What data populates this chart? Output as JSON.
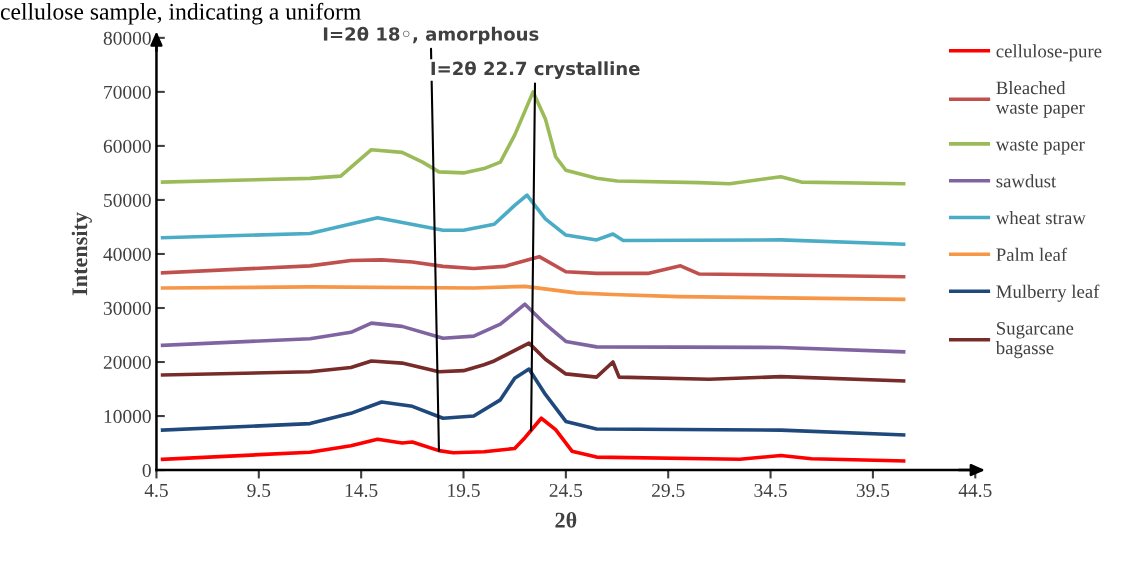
{
  "chart_data": {
    "type": "line",
    "xlabel": "2θ",
    "ylabel": "Intensity",
    "xlim": [
      4.5,
      44.5
    ],
    "xticks": [
      {
        "value": 4.5,
        "label": "4.5"
      },
      {
        "value": 9.5,
        "label": "9.5"
      },
      {
        "value": 14.5,
        "label": "14.5"
      },
      {
        "value": 19.5,
        "label": "19.5"
      },
      {
        "value": 24.5,
        "label": "24.5"
      },
      {
        "value": 29.5,
        "label": "29.5"
      },
      {
        "value": 34.5,
        "label": "34.5"
      },
      {
        "value": 39.5,
        "label": "39.5"
      },
      {
        "value": 44.5,
        "label": "44.5"
      }
    ],
    "ylim": [
      0,
      80000
    ],
    "yticks": [
      0,
      10000,
      20000,
      30000,
      40000,
      50000,
      60000,
      70000,
      80000
    ],
    "grid": false,
    "legend": "right",
    "marker": "none",
    "line_style": "solid",
    "annotations": [
      "cellulose sample, indicating a uniform",
      {
        "text": "I=2θ 18◦, amorphous",
        "x": 18.3,
        "y": 3600
      },
      {
        "text": "I=2θ 22.7 crystalline",
        "x": 22.8,
        "y": 7350
      }
    ],
    "series": [
      {
        "name": "cellulose-pure",
        "color": "#ff0000",
        "x": [
          4.8,
          12,
          14,
          15.3,
          16.5,
          17,
          18.3,
          19,
          20.5,
          22,
          22.5,
          23.3,
          24,
          24.8,
          26,
          33,
          35,
          36.5,
          41
        ],
        "values": [
          2000,
          3300,
          4500,
          5700,
          5000,
          5200,
          3600,
          3200,
          3400,
          4000,
          6000,
          9600,
          7500,
          3500,
          2400,
          2000,
          2700,
          2100,
          1700
        ]
      },
      {
        "name": "Bleached\nwaste paper",
        "color": "#c0504d",
        "x": [
          4.8,
          12,
          14,
          15.5,
          17,
          18.5,
          20,
          21.5,
          23.2,
          24.5,
          26,
          28.5,
          30.1,
          31,
          41
        ],
        "values": [
          36500,
          37800,
          38800,
          38900,
          38500,
          37700,
          37300,
          37700,
          39500,
          36700,
          36400,
          36400,
          37800,
          36300,
          35800
        ]
      },
      {
        "name": "waste paper",
        "color": "#9bbb59",
        "x": [
          4.8,
          12,
          13.5,
          15,
          16.5,
          17.5,
          18.3,
          19.5,
          20.5,
          21.3,
          22,
          22.9,
          23.5,
          24,
          24.5,
          26,
          27,
          31,
          32.5,
          35,
          36,
          41
        ],
        "values": [
          53300,
          54000,
          54400,
          59300,
          58800,
          57000,
          55200,
          55000,
          55800,
          57000,
          62000,
          70000,
          65000,
          58000,
          55500,
          54000,
          53500,
          53200,
          53000,
          54300,
          53300,
          53000
        ]
      },
      {
        "name": "sawdust",
        "color": "#8064a2",
        "x": [
          4.8,
          12,
          14,
          15,
          16.5,
          18.5,
          20,
          21.3,
          22.5,
          23.5,
          24.5,
          26,
          35,
          41
        ],
        "values": [
          23100,
          24300,
          25500,
          27200,
          26600,
          24400,
          24800,
          27000,
          30700,
          27000,
          23800,
          22800,
          22700,
          21900
        ]
      },
      {
        "name": "wheat straw",
        "color": "#4bacc6",
        "x": [
          4.8,
          12,
          15.3,
          18.5,
          19.5,
          21,
          22,
          22.6,
          23.5,
          24.5,
          26,
          26.8,
          27.3,
          35,
          41
        ],
        "values": [
          43000,
          43800,
          46700,
          44400,
          44400,
          45500,
          49000,
          50900,
          46500,
          43500,
          42600,
          43700,
          42500,
          42600,
          41800
        ]
      },
      {
        "name": "Palm leaf",
        "color": "#f79646",
        "x": [
          4.8,
          12,
          20,
          22.5,
          25,
          26.8,
          30,
          41
        ],
        "values": [
          33700,
          33900,
          33700,
          34000,
          32800,
          32500,
          32100,
          31600
        ]
      },
      {
        "name": "Mulberry leaf",
        "color": "#1f497d",
        "x": [
          4.8,
          12,
          14,
          15.5,
          17,
          18.5,
          20,
          21.3,
          22,
          22.7,
          23.5,
          24.5,
          26,
          35,
          41
        ],
        "values": [
          7400,
          8600,
          10500,
          12600,
          11800,
          9600,
          10000,
          13000,
          17000,
          18700,
          14000,
          9000,
          7600,
          7400,
          6500
        ]
      },
      {
        "name": "Sugarcane\nbagasse",
        "color": "#772c2a",
        "x": [
          4.8,
          12,
          14,
          15,
          16.5,
          18.3,
          19.5,
          20.5,
          21,
          22.7,
          23.5,
          24.5,
          26,
          26.8,
          27.1,
          31.5,
          35,
          41
        ],
        "values": [
          17600,
          18200,
          19000,
          20200,
          19800,
          18200,
          18400,
          19500,
          20200,
          23500,
          20500,
          17800,
          17200,
          20000,
          17200,
          16800,
          17300,
          16500
        ]
      }
    ]
  }
}
